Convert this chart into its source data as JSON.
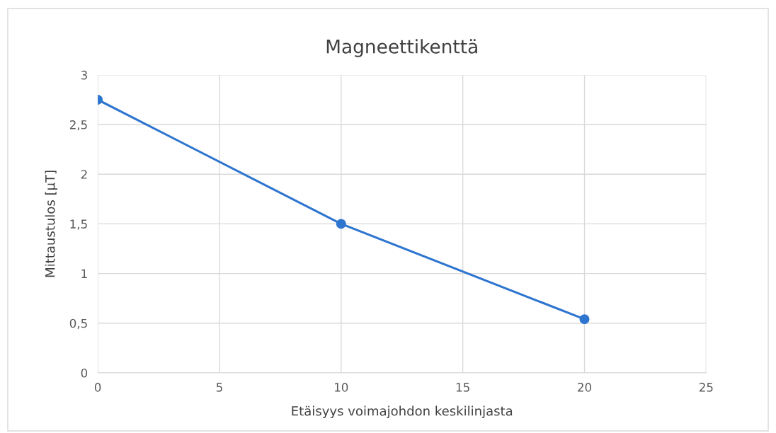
{
  "chart_data": {
    "type": "line",
    "title": "Magneettikenttä",
    "xlabel": "Etäisyys voimajohdon keskilinjasta",
    "ylabel": "Mittaustulos [µT]",
    "x": [
      0,
      10,
      20
    ],
    "series": [
      {
        "color": "#2e75d0",
        "values": [
          2.75,
          1.5,
          0.54
        ]
      }
    ],
    "xlim": [
      0,
      25
    ],
    "xticks": [
      0,
      5,
      10,
      15,
      20,
      25
    ],
    "ylim": [
      0,
      3
    ],
    "yticks": [
      0,
      {
        "value": 0.5,
        "label": "0,5"
      },
      1,
      {
        "value": 1.5,
        "label": "1,5"
      },
      2,
      {
        "value": 2.5,
        "label": "2,5"
      },
      3
    ],
    "grid": true,
    "marker": "circle",
    "line_style": "solid",
    "legend": false
  }
}
